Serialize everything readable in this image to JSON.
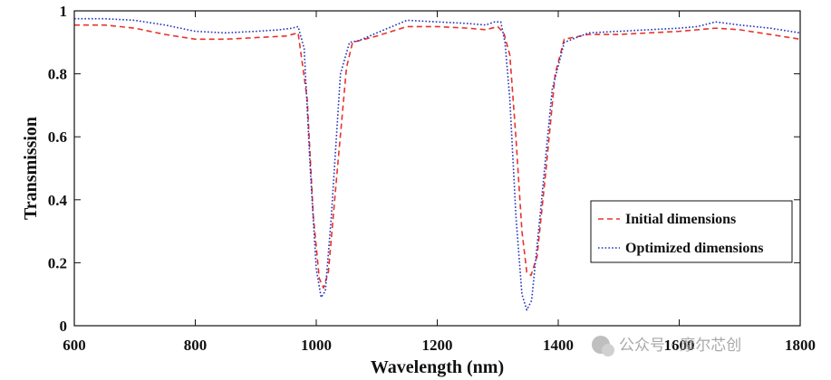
{
  "chart_data": {
    "type": "line",
    "xlabel": "Wavelength (nm)",
    "ylabel": "Transmission",
    "xlim": [
      600,
      1800
    ],
    "ylim": [
      0,
      1
    ],
    "xticks": [
      600,
      800,
      1000,
      1200,
      1400,
      1600,
      1800
    ],
    "yticks": [
      0,
      0.2,
      0.4,
      0.6,
      0.8,
      1
    ],
    "ytick_labels": [
      "0",
      "0.2",
      "0.4",
      "0.6",
      "0.8",
      "1"
    ],
    "legend_position": "lower-right",
    "series": [
      {
        "name": "Initial dimensions",
        "color": "#e8332a",
        "style": "dashed",
        "x": [
          600,
          650,
          700,
          750,
          800,
          850,
          900,
          950,
          970,
          985,
          995,
          1005,
          1012,
          1020,
          1035,
          1050,
          1060,
          1080,
          1100,
          1150,
          1200,
          1250,
          1280,
          1300,
          1310,
          1320,
          1330,
          1340,
          1348,
          1355,
          1365,
          1380,
          1395,
          1410,
          1450,
          1500,
          1550,
          1600,
          1630,
          1660,
          1700,
          1750,
          1800
        ],
        "y": [
          0.955,
          0.955,
          0.945,
          0.925,
          0.91,
          0.91,
          0.915,
          0.92,
          0.93,
          0.72,
          0.35,
          0.15,
          0.12,
          0.17,
          0.5,
          0.82,
          0.9,
          0.91,
          0.92,
          0.95,
          0.95,
          0.945,
          0.94,
          0.95,
          0.93,
          0.86,
          0.6,
          0.3,
          0.17,
          0.16,
          0.22,
          0.5,
          0.8,
          0.91,
          0.925,
          0.925,
          0.93,
          0.935,
          0.94,
          0.945,
          0.94,
          0.925,
          0.91
        ]
      },
      {
        "name": "Optimized dimensions",
        "color": "#2233bb",
        "style": "dotted",
        "x": [
          600,
          650,
          700,
          750,
          800,
          850,
          900,
          940,
          960,
          970,
          980,
          990,
          1000,
          1008,
          1015,
          1025,
          1040,
          1055,
          1070,
          1100,
          1150,
          1200,
          1250,
          1280,
          1295,
          1305,
          1312,
          1320,
          1330,
          1340,
          1348,
          1356,
          1370,
          1390,
          1410,
          1450,
          1500,
          1550,
          1600,
          1630,
          1660,
          1700,
          1750,
          1800
        ],
        "y": [
          0.975,
          0.975,
          0.97,
          0.955,
          0.935,
          0.93,
          0.935,
          0.94,
          0.945,
          0.95,
          0.88,
          0.5,
          0.18,
          0.09,
          0.11,
          0.35,
          0.8,
          0.9,
          0.905,
          0.93,
          0.97,
          0.965,
          0.96,
          0.955,
          0.965,
          0.965,
          0.9,
          0.72,
          0.35,
          0.1,
          0.05,
          0.08,
          0.35,
          0.75,
          0.9,
          0.93,
          0.935,
          0.94,
          0.945,
          0.95,
          0.965,
          0.955,
          0.945,
          0.93
        ]
      }
    ]
  },
  "watermark": {
    "text": "公众号 · 摩尔芯创"
  }
}
